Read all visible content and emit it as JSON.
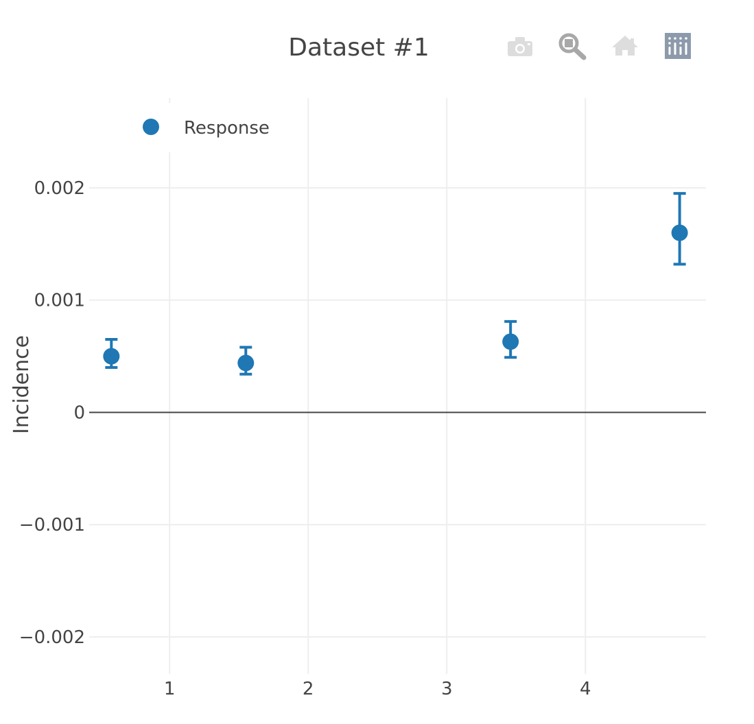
{
  "chart_data": {
    "type": "scatter",
    "title": "Dataset #1",
    "xlabel": "",
    "ylabel": "Incidence",
    "xlim": [
      0.42,
      4.87
    ],
    "ylim": [
      -0.00233,
      0.0028
    ],
    "xticks": [
      1,
      2,
      3,
      4
    ],
    "xtick_labels": [
      "1",
      "2",
      "3",
      "4"
    ],
    "yticks": [
      0.002,
      0.001,
      0,
      -0.001,
      -0.002
    ],
    "ytick_labels": [
      "0.002",
      "0.001",
      "0",
      "−0.001",
      "−0.002"
    ],
    "grid": true,
    "legend_position": "top-left",
    "series": [
      {
        "name": "Response",
        "color": "#1f77b4",
        "x": [
          0.58,
          1.55,
          3.46,
          4.68
        ],
        "y": [
          0.0005,
          0.00044,
          0.00063,
          0.0016
        ],
        "error_plus": [
          0.00015,
          0.00014,
          0.00018,
          0.00035
        ],
        "error_minus": [
          0.0001,
          0.0001,
          0.00014,
          0.00028
        ]
      }
    ]
  },
  "modebar": {
    "buttons": [
      {
        "icon": "camera-icon",
        "name": "download-plot-button",
        "color": "#dddddd"
      },
      {
        "icon": "zoom-icon",
        "name": "zoom-button",
        "color": "#a8a8a8"
      },
      {
        "icon": "home-icon",
        "name": "reset-axes-button",
        "color": "#dddddd"
      },
      {
        "icon": "plotly-logo-icon",
        "name": "plotly-logo-button",
        "color": "#8d9aab"
      }
    ]
  }
}
